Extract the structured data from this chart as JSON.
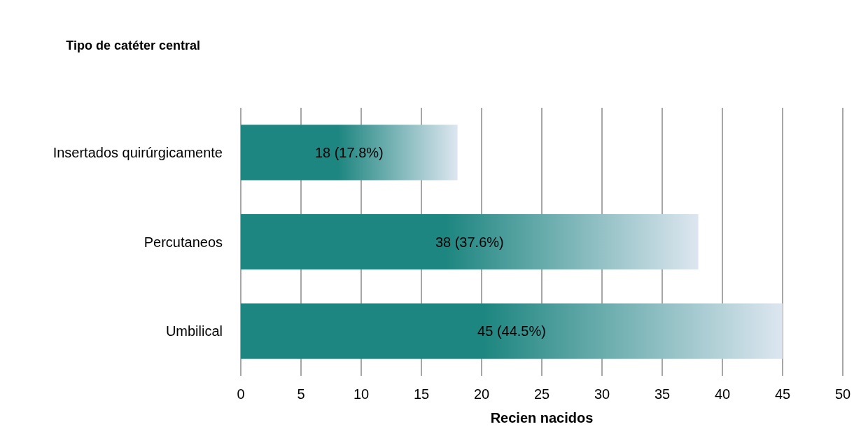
{
  "chart_data": {
    "type": "bar",
    "orientation": "horizontal",
    "ylabel": "Tipo de catéter central",
    "xlabel": "Recien nacidos",
    "categories": [
      "Insertados quirúrgicamente",
      "Percutaneos",
      "Umbilical"
    ],
    "values": [
      18,
      38,
      45
    ],
    "value_labels": [
      "18 (17.8%)",
      "38 (37.6%)",
      "45 (44.5%)"
    ],
    "color": "#1e8680",
    "xlim": [
      0,
      50
    ],
    "xticks": [
      0,
      5,
      10,
      15,
      20,
      25,
      30,
      35,
      40,
      45,
      50
    ],
    "grid": "x"
  }
}
